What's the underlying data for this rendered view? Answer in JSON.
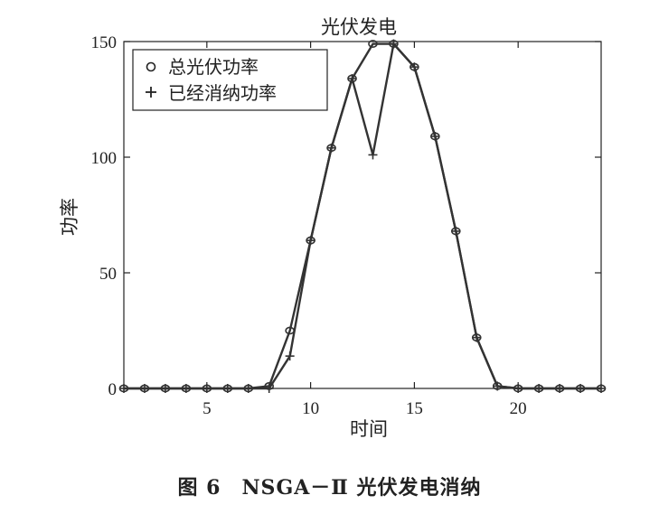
{
  "chart_data": {
    "type": "line",
    "title": "光伏发电",
    "xlabel": "时间",
    "ylabel": "功率",
    "xlim": [
      1,
      24
    ],
    "ylim": [
      0,
      150
    ],
    "xticks": [
      5,
      10,
      15,
      20
    ],
    "yticks": [
      0,
      50,
      100,
      150
    ],
    "grid": false,
    "legend": "top-left",
    "x": [
      1,
      2,
      3,
      4,
      5,
      6,
      7,
      8,
      9,
      10,
      11,
      12,
      13,
      14,
      15,
      16,
      17,
      18,
      19,
      20,
      21,
      22,
      23,
      24
    ],
    "series": [
      {
        "name": "总光伏功率",
        "marker": "circle",
        "values": [
          0,
          0,
          0,
          0,
          0,
          0,
          0,
          1,
          25,
          64,
          104,
          134,
          149,
          149,
          139,
          109,
          68,
          22,
          1,
          0,
          0,
          0,
          0,
          0
        ]
      },
      {
        "name": "已经消纳功率",
        "marker": "plus",
        "values": [
          0,
          0,
          0,
          0,
          0,
          0,
          0,
          0,
          14,
          64,
          104,
          134,
          101,
          149,
          139,
          109,
          68,
          22,
          1,
          0,
          0,
          0,
          0,
          0
        ]
      }
    ],
    "line_color": "#333333"
  },
  "caption": "图 6　NSGA－Ⅱ 光伏发电消纳"
}
